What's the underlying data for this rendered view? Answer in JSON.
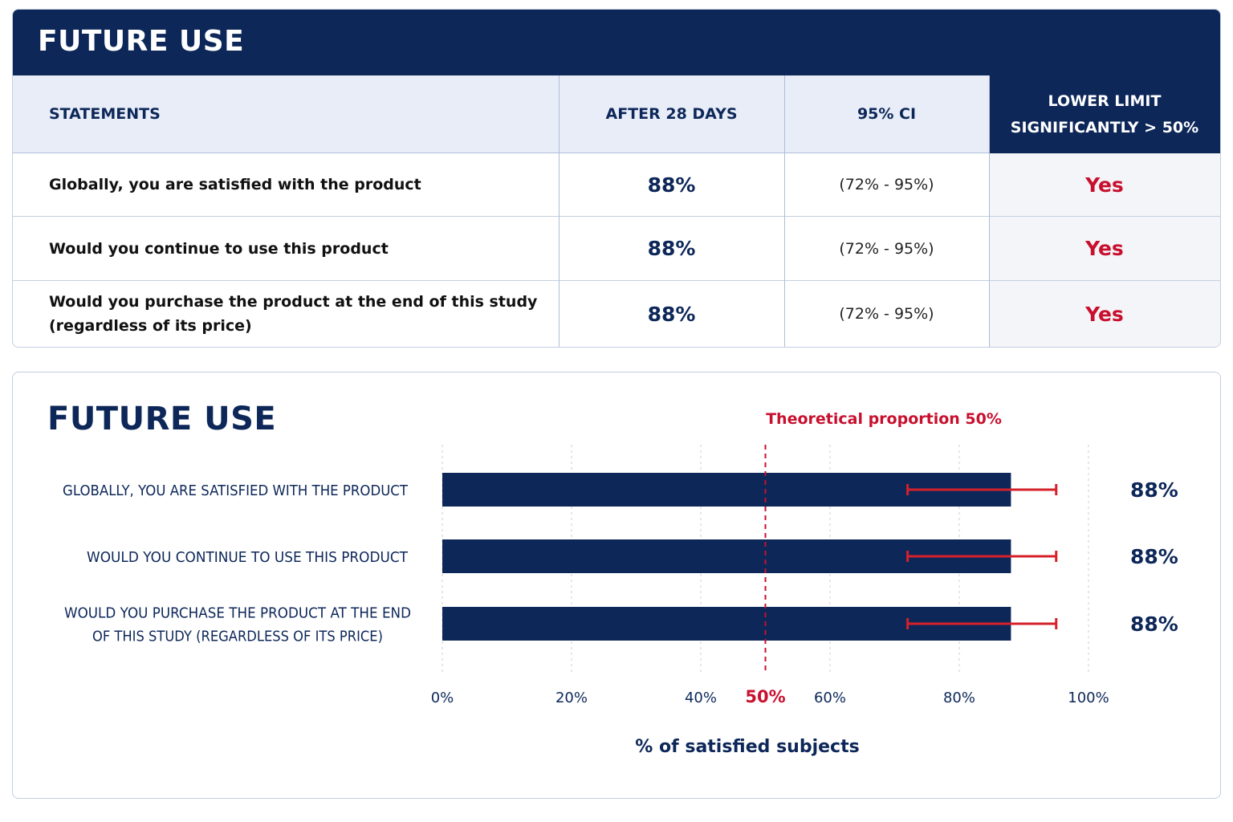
{
  "table": {
    "title": "FUTURE USE",
    "headers": {
      "statements": "STATEMENTS",
      "after": "AFTER 28 DAYS",
      "ci": "95% CI",
      "lower_line1": "LOWER LIMIT",
      "lower_line2": "SIGNIFICANTLY > 50%"
    },
    "rows": [
      {
        "statement_line1": "Globally, you are satisfied with the product",
        "statement_line2": "",
        "value": "88%",
        "ci": "(72% - 95%)",
        "significant": "Yes"
      },
      {
        "statement_line1": "Would you continue to use this product",
        "statement_line2": "",
        "value": "88%",
        "ci": "(72% - 95%)",
        "significant": "Yes"
      },
      {
        "statement_line1": "Would you purchase the product at the end of this study",
        "statement_line2": "(regardless of its price)",
        "value": "88%",
        "ci": "(72% - 95%)",
        "significant": "Yes"
      }
    ]
  },
  "chart_data": {
    "type": "bar",
    "orientation": "horizontal",
    "title": "FUTURE USE",
    "xlabel": "% of satisfied subjects",
    "xlim": [
      0,
      100
    ],
    "ticks": [
      {
        "value": 0,
        "label": "0%"
      },
      {
        "value": 20,
        "label": "20%"
      },
      {
        "value": 40,
        "label": "40%"
      },
      {
        "value": 50,
        "label": "50%"
      },
      {
        "value": 60,
        "label": "60%"
      },
      {
        "value": 80,
        "label": "80%"
      },
      {
        "value": 100,
        "label": "100%"
      }
    ],
    "reference_line": {
      "value": 50,
      "label": "Theoretical proportion 50%",
      "color": "#c8102e"
    },
    "grid": true,
    "bar_color": "#0d2759",
    "error_color": "#d6202a",
    "bars": [
      {
        "label_lines": [
          "GLOBALLY, YOU ARE SATISFIED WITH THE PRODUCT"
        ],
        "value": 88,
        "ci_low": 72,
        "ci_high": 95,
        "value_label": "88%"
      },
      {
        "label_lines": [
          "WOULD YOU CONTINUE TO USE THIS PRODUCT"
        ],
        "value": 88,
        "ci_low": 72,
        "ci_high": 95,
        "value_label": "88%"
      },
      {
        "label_lines": [
          "WOULD YOU PURCHASE THE PRODUCT AT THE END",
          "OF THIS STUDY (REGARDLESS OF ITS PRICE)"
        ],
        "value": 88,
        "ci_low": 72,
        "ci_high": 95,
        "value_label": "88%"
      }
    ]
  }
}
